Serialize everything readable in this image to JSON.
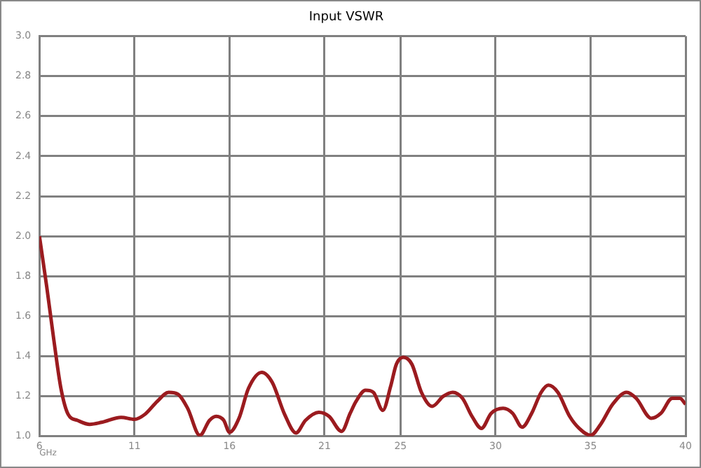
{
  "chart_data": {
    "type": "line",
    "title": "Input VSWR",
    "xlabel": "GHz",
    "xlim": [
      6,
      40
    ],
    "xticks": [
      6,
      11,
      16,
      21,
      25,
      30,
      35,
      40
    ],
    "ylim": [
      1.0,
      3.0
    ],
    "yticks": [
      {
        "value": 1,
        "label": "1.0"
      },
      1.2,
      1.4,
      1.6,
      1.8,
      {
        "value": 2,
        "label": "2.0"
      },
      2.2,
      2.4,
      2.6,
      2.8,
      {
        "value": 3,
        "label": "3.0"
      }
    ],
    "grid": true,
    "legend": false,
    "marker": "none",
    "line_style": "solid",
    "series": [
      {
        "color": "#9b1b1f",
        "x": [
          6,
          6.38,
          6.76,
          7.13,
          7.51,
          8.0,
          8.64,
          9.27,
          10.3,
          11,
          11.55,
          12.2,
          12.8,
          13.3,
          13.8,
          14.44,
          14.95,
          15.3,
          15.7,
          16.0,
          16.5,
          17.0,
          17.7,
          18.25,
          18.9,
          19.5,
          20.0,
          20.7,
          21.24,
          21.9,
          22.35,
          22.66,
          23.16,
          23.57,
          24.07,
          24.48,
          24.78,
          25.15,
          25.6,
          26.1,
          26.67,
          27.25,
          27.75,
          28.26,
          28.76,
          29.26,
          29.77,
          30.4,
          30.9,
          31.4,
          31.9,
          32.4,
          32.78,
          33.28,
          33.9,
          34.4,
          35.0,
          35.53,
          36.16,
          36.9,
          37.4,
          38.2,
          38.7,
          39.3,
          39.7,
          40
        ],
        "values": [
          2.0,
          1.75,
          1.48,
          1.24,
          1.11,
          1.08,
          1.06,
          1.07,
          1.095,
          1.085,
          1.11,
          1.175,
          1.22,
          1.21,
          1.14,
          1.005,
          1.08,
          1.1,
          1.08,
          1.02,
          1.09,
          1.24,
          1.32,
          1.27,
          1.11,
          1.017,
          1.08,
          1.12,
          1.1,
          1.025,
          1.115,
          1.175,
          1.23,
          1.22,
          1.13,
          1.25,
          1.36,
          1.395,
          1.36,
          1.22,
          1.15,
          1.2,
          1.22,
          1.19,
          1.1,
          1.04,
          1.115,
          1.14,
          1.115,
          1.046,
          1.115,
          1.22,
          1.256,
          1.22,
          1.1,
          1.04,
          1.005,
          1.06,
          1.16,
          1.22,
          1.19,
          1.09,
          1.115,
          1.19,
          1.19,
          1.16
        ]
      }
    ]
  }
}
